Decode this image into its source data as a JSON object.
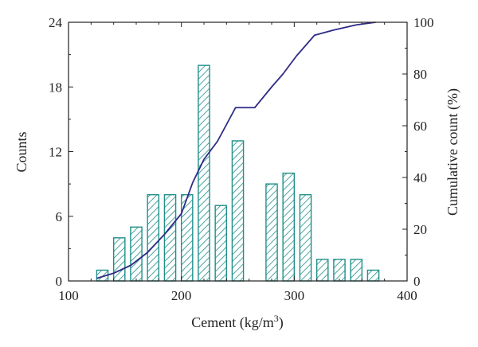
{
  "chart_data": {
    "type": "bar",
    "subtype": "histogram-with-cumulative-line",
    "xlabel": "Cement (kg/m",
    "xlabel_superscript": "3",
    "xlabel_close": ")",
    "ylabel": "Counts",
    "y2label": "Cumulative count (%)",
    "xlim": [
      100,
      400
    ],
    "ylim": [
      0,
      24
    ],
    "y2lim": [
      0,
      100
    ],
    "x_ticks": [
      "100",
      "200",
      "300",
      "400"
    ],
    "y_ticks": [
      "0",
      "6",
      "12",
      "18",
      "24"
    ],
    "y2_ticks": [
      "0",
      "20",
      "40",
      "60",
      "80",
      "100"
    ],
    "grid": false,
    "bin_width": 10,
    "bars": {
      "x": [
        130,
        145,
        160,
        175,
        190,
        205,
        220,
        235,
        250,
        265,
        280,
        295,
        310,
        325,
        340,
        355,
        370
      ],
      "values": [
        1,
        4,
        5,
        8,
        8,
        8,
        20,
        7,
        13,
        0,
        9,
        10,
        8,
        2,
        2,
        2,
        1
      ],
      "color": "#1f8f88",
      "hatch": "diagonal"
    },
    "cumulative": {
      "x": [
        125,
        140,
        155,
        170,
        185,
        200,
        210,
        220,
        232,
        248,
        265,
        280,
        290,
        302,
        318,
        335,
        355,
        372
      ],
      "y": [
        1,
        3,
        6,
        11,
        18,
        26,
        38,
        47,
        54,
        67,
        67,
        75,
        80,
        87,
        95,
        97,
        99,
        100
      ],
      "color": "#2e2a86"
    }
  }
}
